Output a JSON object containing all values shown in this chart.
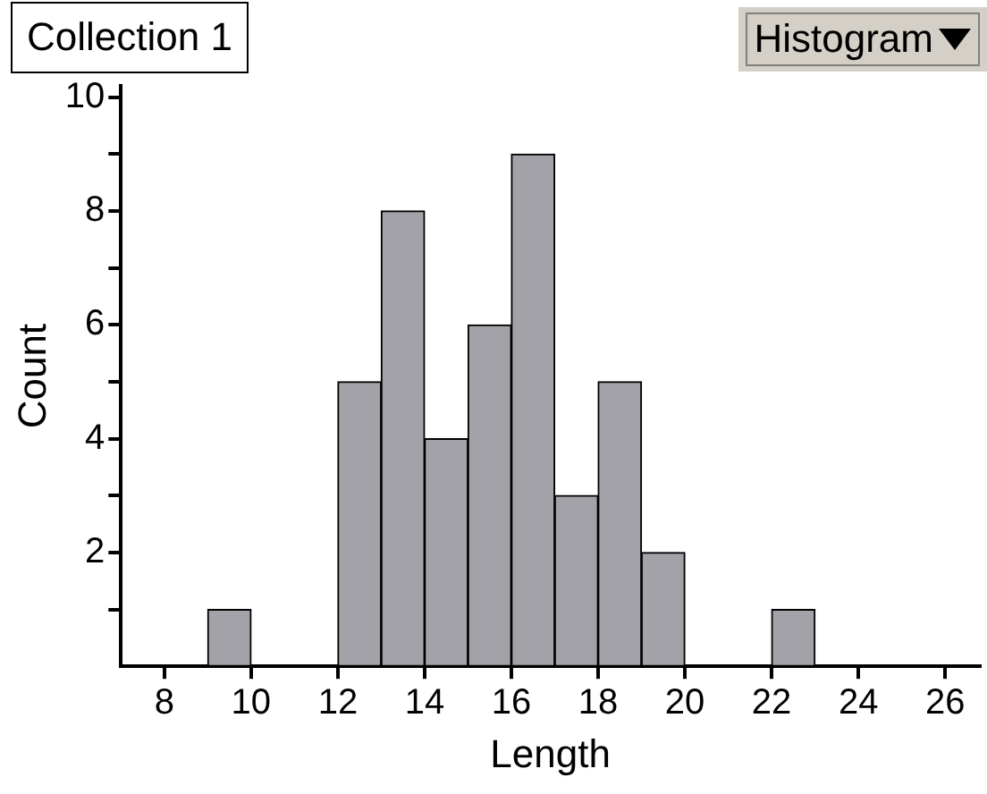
{
  "chart_data": {
    "type": "histogram",
    "title": "Collection 1",
    "annotations": [
      "Histogram"
    ],
    "xlabel": "Length",
    "ylabel": "Count",
    "bins": [
      9,
      10,
      11,
      12,
      13,
      14,
      15,
      16,
      17,
      18,
      19,
      20,
      21,
      22,
      23
    ],
    "values": [
      1,
      0,
      0,
      5,
      8,
      4,
      6,
      9,
      3,
      5,
      2,
      0,
      0,
      1
    ],
    "color": "#a2a2a8",
    "xlim": [
      7,
      26.8
    ],
    "xticks": [
      8,
      10,
      12,
      14,
      16,
      18,
      20,
      22,
      24,
      26
    ],
    "ylim": [
      0,
      10.2
    ],
    "yticks": [
      {
        "value": 1,
        "label": null
      },
      2,
      {
        "value": 3,
        "label": null
      },
      4,
      {
        "value": 5,
        "label": null
      },
      6,
      {
        "value": 7,
        "label": null
      },
      8,
      {
        "value": 9,
        "label": null
      },
      10
    ],
    "grid": false,
    "legend": false
  }
}
